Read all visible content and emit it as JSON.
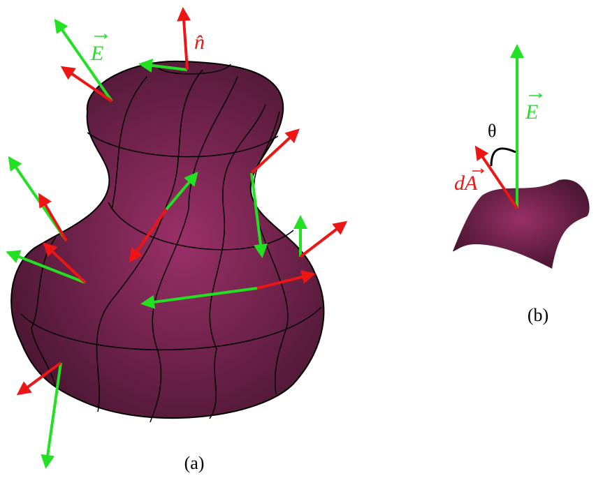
{
  "diagram": {
    "labels": {
      "field_a": "E",
      "normal": "n̂",
      "field_b": "E",
      "area": "dA",
      "angle": "θ"
    },
    "captions": [
      "(a)",
      "(b)"
    ]
  }
}
